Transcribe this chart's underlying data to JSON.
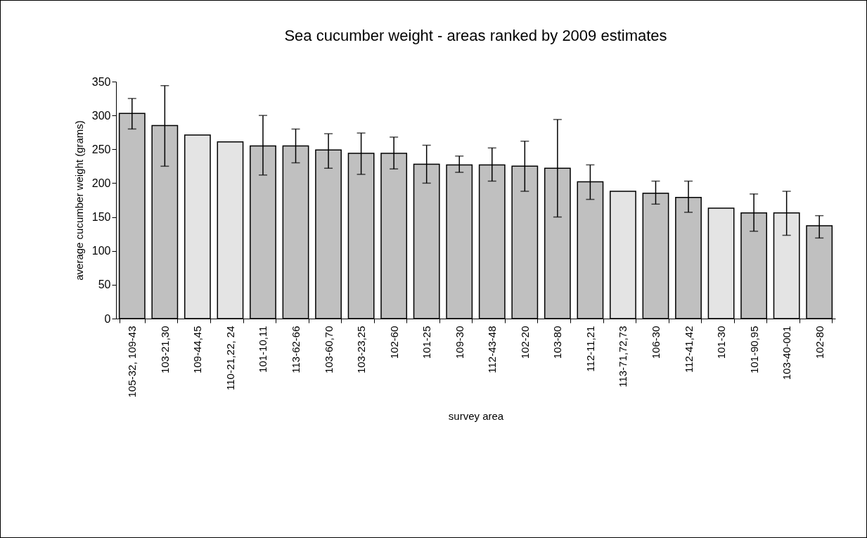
{
  "chart_data": {
    "type": "bar",
    "title": "Sea cucumber weight - areas ranked by 2009 estimates",
    "xlabel": "survey area",
    "ylabel": "average cucumber weight (grams)",
    "categories": [
      "105-32, 109-43",
      "103-21,30",
      "109-44,45",
      "110-21,22, 24",
      "101-10,11",
      "113-62-66",
      "103-60,70",
      "103-23,25",
      "102-60",
      "101-25",
      "109-30",
      "112-43-48",
      "102-20",
      "103-80",
      "112-11,21",
      "113-71,72,73",
      "106-30",
      "112-41,42",
      "101-30",
      "101-90,95",
      "103-40-001",
      "102-80"
    ],
    "values": [
      303,
      285,
      271,
      261,
      255,
      255,
      249,
      244,
      244,
      228,
      227,
      227,
      225,
      222,
      202,
      188,
      185,
      179,
      163,
      156,
      156,
      137
    ],
    "errors": [
      [
        280,
        325
      ],
      [
        225,
        344
      ],
      null,
      null,
      [
        212,
        300
      ],
      [
        230,
        280
      ],
      [
        222,
        273
      ],
      [
        213,
        274
      ],
      [
        221,
        268
      ],
      [
        200,
        256
      ],
      [
        216,
        240
      ],
      [
        203,
        252
      ],
      [
        188,
        262
      ],
      [
        150,
        294
      ],
      [
        176,
        227
      ],
      null,
      [
        169,
        203
      ],
      [
        157,
        203
      ],
      null,
      [
        129,
        184
      ],
      [
        123,
        188
      ],
      [
        119,
        152
      ]
    ],
    "colors": [
      "#c0c0c0",
      "#c0c0c0",
      "#e4e4e4",
      "#e4e4e4",
      "#c0c0c0",
      "#c0c0c0",
      "#c0c0c0",
      "#c0c0c0",
      "#c0c0c0",
      "#c0c0c0",
      "#c0c0c0",
      "#c0c0c0",
      "#c0c0c0",
      "#c0c0c0",
      "#c0c0c0",
      "#e4e4e4",
      "#c0c0c0",
      "#c0c0c0",
      "#e4e4e4",
      "#c0c0c0",
      "#e4e4e4",
      "#c0c0c0"
    ],
    "ylim": [
      0,
      350
    ],
    "yticks": [
      0,
      50,
      100,
      150,
      200,
      250,
      300,
      350
    ],
    "grid": false
  }
}
